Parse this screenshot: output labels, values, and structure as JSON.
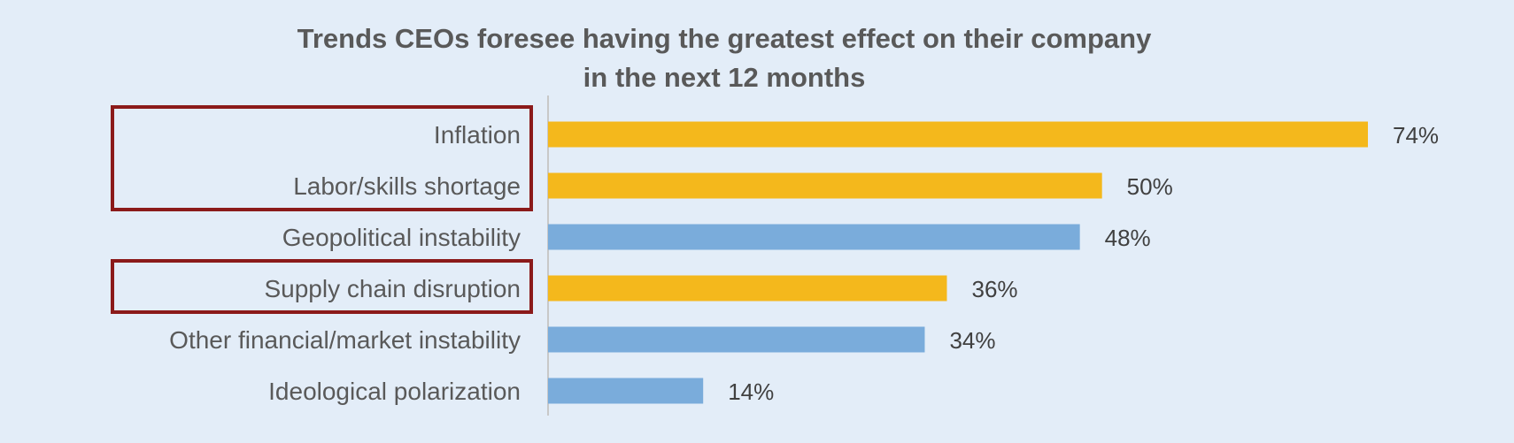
{
  "chart_data": {
    "type": "bar",
    "orientation": "horizontal",
    "title": "Trends CEOs foresee having the greatest effect on their company in the next 12 months",
    "title_lines": [
      "Trends CEOs foresee having the greatest effect on their company",
      "in the next 12 months"
    ],
    "categories": [
      "Inflation",
      "Labor/skills shortage",
      "Geopolitical instability",
      "Supply chain disruption",
      "Other financial/market instability",
      "Ideological polarization"
    ],
    "values": [
      74,
      50,
      48,
      36,
      34,
      14
    ],
    "value_labels": [
      "74%",
      "50%",
      "48%",
      "36%",
      "34%",
      "14%"
    ],
    "bar_colors": [
      "#f4b81c",
      "#f4b81c",
      "#7aacdb",
      "#f4b81c",
      "#7aacdb",
      "#7aacdb"
    ],
    "highlighted_groups": [
      [
        "Inflation",
        "Labor/skills shortage"
      ],
      [
        "Supply chain disruption"
      ]
    ],
    "highlight_box_color": "#8b1a1a",
    "xlim": [
      0,
      74
    ],
    "xlabel": "",
    "ylabel": "",
    "grid": false,
    "legend": "none"
  },
  "colors": {
    "background": "#e3edf8",
    "title": "#595959",
    "axis": "#c8c8c8"
  }
}
